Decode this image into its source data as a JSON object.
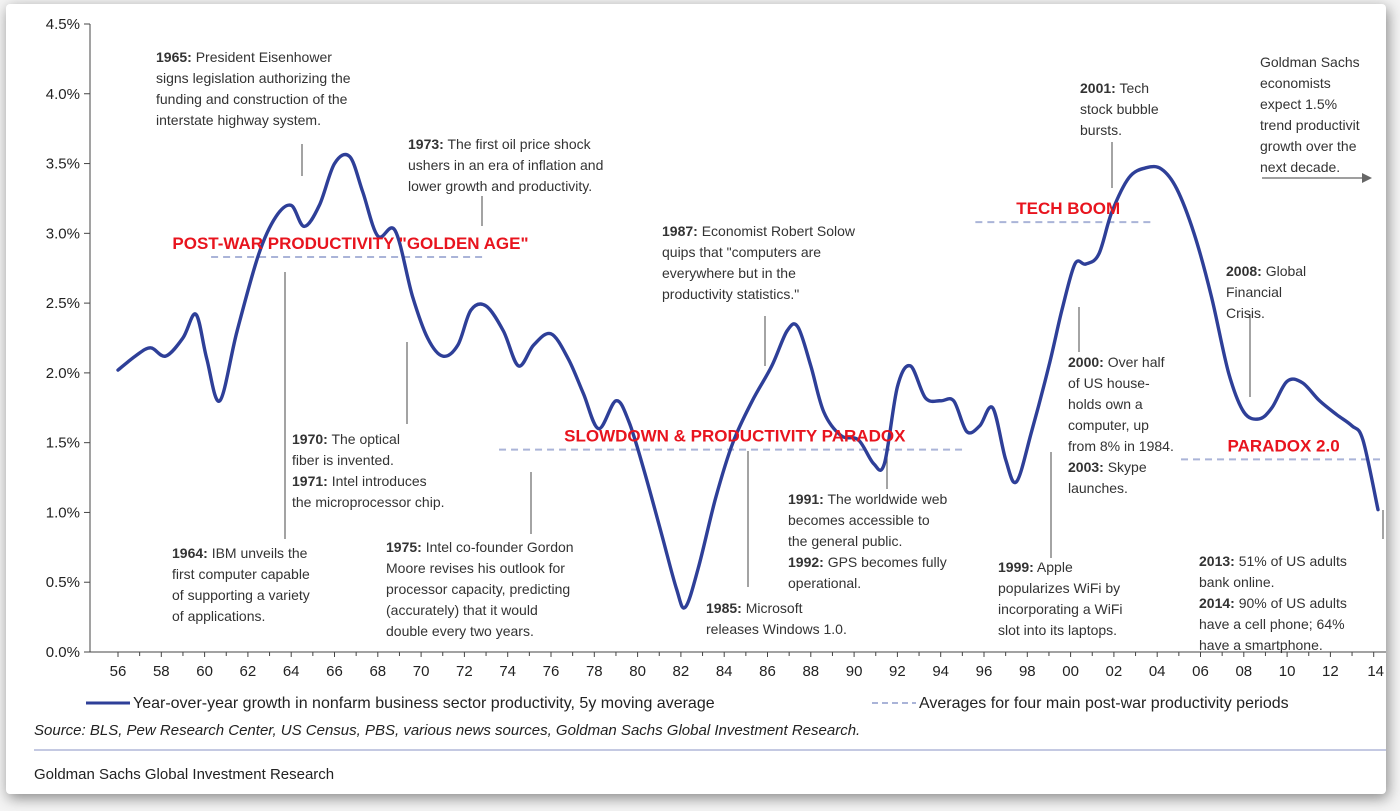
{
  "chart_data": {
    "type": "line",
    "ylim": [
      0,
      4.5
    ],
    "y_ticks": [
      "0.0%",
      "0.5%",
      "1.0%",
      "1.5%",
      "2.0%",
      "2.5%",
      "3.0%",
      "3.5%",
      "4.0%",
      "4.5%"
    ],
    "x_ticks": [
      "56",
      "58",
      "60",
      "62",
      "64",
      "66",
      "68",
      "70",
      "72",
      "74",
      "76",
      "78",
      "80",
      "82",
      "84",
      "86",
      "88",
      "90",
      "92",
      "94",
      "96",
      "98",
      "00",
      "02",
      "04",
      "06",
      "08",
      "10",
      "12",
      "14"
    ],
    "grid": false,
    "series": [
      {
        "name": "Year-over-year growth in nonfarm business sector productivity, 5y moving average",
        "color": "#2e3f98",
        "x": [
          1956,
          1956.8,
          1957.5,
          1958.2,
          1959,
          1959.6,
          1960.1,
          1960.7,
          1961.5,
          1962.5,
          1963.3,
          1964,
          1964.6,
          1965.3,
          1966,
          1966.7,
          1967.3,
          1968,
          1968.8,
          1969.6,
          1970.3,
          1971,
          1971.7,
          1972.3,
          1973,
          1973.8,
          1974.5,
          1975.2,
          1976,
          1976.8,
          1977.5,
          1978.2,
          1979,
          1979.6,
          1980.3,
          1981.1,
          1981.8,
          1982.2,
          1982.8,
          1983.6,
          1984.4,
          1985.3,
          1986.2,
          1986.9,
          1987.4,
          1988,
          1988.6,
          1989.4,
          1990.2,
          1990.9,
          1991.4,
          1992,
          1992.6,
          1993.3,
          1994,
          1994.6,
          1995.2,
          1995.8,
          1996.4,
          1997,
          1997.5,
          1998.2,
          1999,
          1999.6,
          2000.2,
          2000.7,
          2001.3,
          2001.9,
          2002.7,
          2003.5,
          2004.2,
          2004.9,
          2005.7,
          2006.5,
          2007.3,
          2008,
          2008.7,
          2009.3,
          2010,
          2010.7,
          2011.5,
          2012.3,
          2013,
          2013.5,
          2014.2
        ],
        "values": [
          2.02,
          2.12,
          2.18,
          2.12,
          2.25,
          2.42,
          2.1,
          1.8,
          2.3,
          2.85,
          3.12,
          3.2,
          3.05,
          3.2,
          3.5,
          3.55,
          3.3,
          2.98,
          3.02,
          2.55,
          2.25,
          2.12,
          2.2,
          2.45,
          2.48,
          2.3,
          2.05,
          2.2,
          2.28,
          2.1,
          1.85,
          1.6,
          1.8,
          1.65,
          1.3,
          0.85,
          0.45,
          0.32,
          0.6,
          1.1,
          1.5,
          1.8,
          2.05,
          2.3,
          2.33,
          2.05,
          1.72,
          1.55,
          1.52,
          1.35,
          1.35,
          1.9,
          2.05,
          1.82,
          1.8,
          1.8,
          1.58,
          1.62,
          1.75,
          1.38,
          1.22,
          1.58,
          2.05,
          2.45,
          2.78,
          2.78,
          2.85,
          3.15,
          3.4,
          3.47,
          3.46,
          3.32,
          3.0,
          2.55,
          2.0,
          1.72,
          1.67,
          1.75,
          1.94,
          1.93,
          1.8,
          1.7,
          1.62,
          1.52,
          1.02
        ]
      }
    ],
    "periods": [
      {
        "label": "POST-WAR PRODUCTIVITY \"GOLDEN AGE\"",
        "x0": 1960.3,
        "x1": 1972.9,
        "value": 2.83
      },
      {
        "label": "SLOWDOWN & PRODUCTIVITY PARADOX",
        "x0": 1973.6,
        "x1": 1995.1,
        "value": 1.45
      },
      {
        "label": "TECH BOOM",
        "x0": 1995.6,
        "x1": 2003.9,
        "value": 3.08
      },
      {
        "label": "PARADOX 2.0",
        "x0": 2005.1,
        "x1": 2014.3,
        "value": 1.38
      }
    ],
    "annotations": [
      {
        "lines": [
          [
            "1965:",
            " President Eisenhower"
          ],
          [
            "",
            "signs legislation authorizing the"
          ],
          [
            "",
            "funding and construction of the"
          ],
          [
            "",
            "interstate highway system."
          ]
        ]
      },
      {
        "lines": [
          [
            "1973:",
            " The first oil price shock"
          ],
          [
            "",
            "ushers in an era of inflation and"
          ],
          [
            "",
            "lower growth and productivity."
          ]
        ]
      },
      {
        "lines": [
          [
            "1987:",
            " Economist Robert Solow"
          ],
          [
            "",
            "quips that \"computers are"
          ],
          [
            "",
            "everywhere but in the"
          ],
          [
            "",
            "productivity statistics.\""
          ]
        ]
      },
      {
        "lines": [
          [
            "2001:",
            " Tech"
          ],
          [
            "",
            "stock bubble"
          ],
          [
            "",
            "bursts."
          ]
        ]
      },
      {
        "lines": [
          [
            "",
            "Goldman Sachs"
          ],
          [
            "",
            "economists"
          ],
          [
            "",
            "expect 1.5%"
          ],
          [
            "",
            "trend productivit"
          ],
          [
            "",
            "growth over the"
          ],
          [
            "",
            "next decade."
          ]
        ]
      },
      {
        "lines": [
          [
            "2008:",
            " Global"
          ],
          [
            "",
            "Financial"
          ],
          [
            "",
            "Crisis."
          ]
        ]
      },
      {
        "lines": [
          [
            "2000:",
            " Over half"
          ],
          [
            "",
            "of US house-"
          ],
          [
            "",
            "holds own a"
          ],
          [
            "",
            "computer, up"
          ],
          [
            "",
            "from 8% in 1984."
          ],
          [
            "2003:",
            " Skype"
          ],
          [
            "",
            "launches."
          ]
        ]
      },
      {
        "lines": [
          [
            "1970:",
            " The optical"
          ],
          [
            "",
            "fiber is invented."
          ],
          [
            "1971:",
            " Intel introduces"
          ],
          [
            "",
            "the microprocessor chip."
          ]
        ]
      },
      {
        "lines": [
          [
            "1964:",
            " IBM unveils the"
          ],
          [
            "",
            "first computer capable"
          ],
          [
            "",
            "of supporting a variety"
          ],
          [
            "",
            "of applications."
          ]
        ]
      },
      {
        "lines": [
          [
            "1975:",
            " Intel co-founder Gordon"
          ],
          [
            "",
            "Moore revises his outlook for"
          ],
          [
            "",
            "processor capacity, predicting"
          ],
          [
            "",
            "(accurately) that it would"
          ],
          [
            "",
            "double every two years."
          ]
        ]
      },
      {
        "lines": [
          [
            "1985:",
            " Microsoft"
          ],
          [
            "",
            "releases Windows 1.0."
          ]
        ]
      },
      {
        "lines": [
          [
            "1991:",
            " The worldwide web"
          ],
          [
            "",
            "becomes accessible to"
          ],
          [
            "",
            "the general public."
          ],
          [
            "1992:",
            " GPS becomes fully"
          ],
          [
            "",
            "operational."
          ]
        ]
      },
      {
        "lines": [
          [
            "1999:",
            " Apple"
          ],
          [
            "",
            "popularizes WiFi by"
          ],
          [
            "",
            "incorporating a WiFi"
          ],
          [
            "",
            "slot into its laptops."
          ]
        ]
      },
      {
        "lines": [
          [
            "2013:",
            " 51% of US adults"
          ],
          [
            "",
            "bank online."
          ],
          [
            "2014:",
            " 90% of US adults"
          ],
          [
            "",
            "have a cell phone; 64%"
          ],
          [
            "",
            "have a smartphone."
          ]
        ]
      }
    ],
    "legend": [
      {
        "label": "Year-over-year growth in nonfarm business sector productivity, 5y moving average",
        "style": "solid"
      },
      {
        "label": "Averages for four main post-war productivity periods",
        "style": "dashed"
      }
    ],
    "source": "Source: BLS, Pew Research Center, US Census, PBS, various news sources, Goldman Sachs Global Investment Research.",
    "footer": "Goldman Sachs Global Investment Research"
  },
  "colors": {
    "line": "#2e3f98",
    "period_dash": "#aab4d8",
    "period_label": "#e8141e",
    "pointer": "#666666"
  }
}
